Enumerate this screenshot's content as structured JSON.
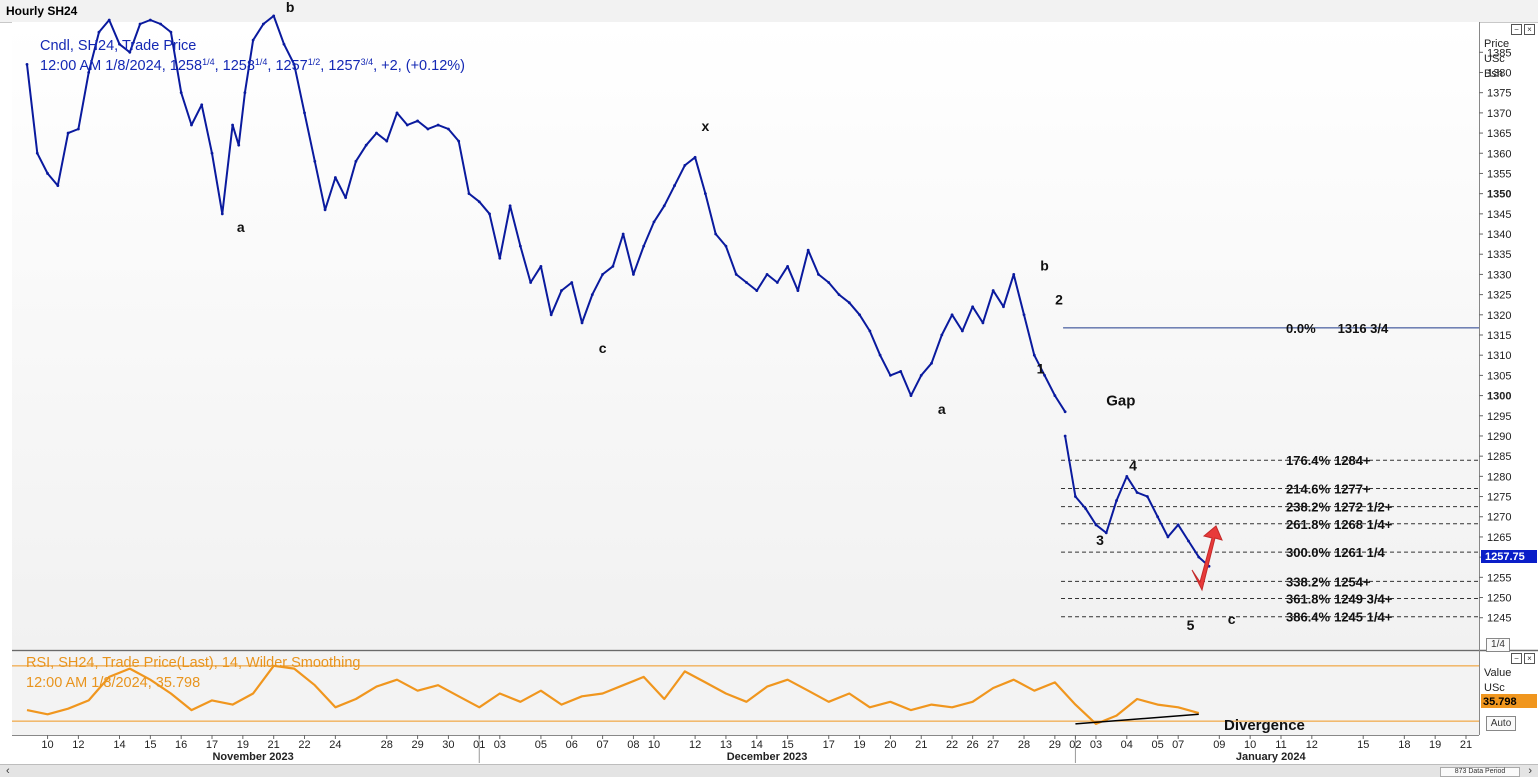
{
  "window": {
    "title": "Hourly SH24"
  },
  "header": {
    "line1": "Cndl, SH24, Trade Price",
    "line2_pre": "12:00 AM 1/8/2024, 1258",
    "q1": "1/4",
    "mid2": ", 1258",
    "q2": "1/4",
    "mid3": ", 1257",
    "q3": "1/2",
    "mid4": ", 1257",
    "q4": "3/4",
    "line2_post": ", +2, (+0.12%)"
  },
  "rsi_header": {
    "line1": "RSI, SH24, Trade Price(Last),  14, Wilder Smoothing",
    "line2": "12:00 AM 1/8/2024, 35.798"
  },
  "axis_units": [
    "Price",
    "USc",
    "Bsh"
  ],
  "rsi_axis_units": [
    "Value",
    "USc"
  ],
  "rsi_value_tag": "35.798",
  "price_tag": "1257.75",
  "buttons": {
    "fraction": "1/4",
    "auto": "Auto",
    "data_period": "873 Data Period"
  },
  "colors": {
    "price": "#0a1a9e",
    "rsi": "#f0961e",
    "divergence_line": "#000000",
    "price_tag_bg": "#0a1ec8",
    "rsi_tag_bg": "#f0961e",
    "arrow": "#e83a3a"
  },
  "chart_data": {
    "type": "line",
    "title": "Hourly SH24",
    "y_ticks": [
      1245,
      1250,
      1255,
      1260,
      1265,
      1270,
      1275,
      1280,
      1285,
      1290,
      1295,
      1300,
      1305,
      1310,
      1315,
      1320,
      1325,
      1330,
      1335,
      1340,
      1345,
      1350,
      1355,
      1360,
      1365,
      1370,
      1375,
      1380,
      1385
    ],
    "y_tick_labels_bold": [
      1300,
      1350
    ],
    "ylim": [
      1237.5,
      1392.5
    ],
    "xlim": [
      0,
      70
    ],
    "day_ticks": [
      {
        "x": 1,
        "label": "10"
      },
      {
        "x": 2.5,
        "label": "12"
      },
      {
        "x": 4.5,
        "label": "14"
      },
      {
        "x": 6,
        "label": "15"
      },
      {
        "x": 7.5,
        "label": "16"
      },
      {
        "x": 9,
        "label": "17"
      },
      {
        "x": 10.5,
        "label": "19"
      },
      {
        "x": 12,
        "label": "21"
      },
      {
        "x": 13.5,
        "label": "22"
      },
      {
        "x": 15,
        "label": "24"
      },
      {
        "x": 17.5,
        "label": "28"
      },
      {
        "x": 19,
        "label": "29"
      },
      {
        "x": 20.5,
        "label": "30"
      },
      {
        "x": 22,
        "label": "01"
      },
      {
        "x": 23,
        "label": "03"
      },
      {
        "x": 25,
        "label": "05"
      },
      {
        "x": 26.5,
        "label": "06"
      },
      {
        "x": 28,
        "label": "07"
      },
      {
        "x": 29.5,
        "label": "08"
      },
      {
        "x": 30.5,
        "label": "10"
      },
      {
        "x": 32.5,
        "label": "12"
      },
      {
        "x": 34,
        "label": "13"
      },
      {
        "x": 35.5,
        "label": "14"
      },
      {
        "x": 37,
        "label": "15"
      },
      {
        "x": 39,
        "label": "17"
      },
      {
        "x": 40.5,
        "label": "19"
      },
      {
        "x": 42,
        "label": "20"
      },
      {
        "x": 43.5,
        "label": "21"
      },
      {
        "x": 45,
        "label": "22"
      },
      {
        "x": 46,
        "label": "26"
      },
      {
        "x": 47,
        "label": "27"
      },
      {
        "x": 48.5,
        "label": "28"
      },
      {
        "x": 50,
        "label": "29"
      },
      {
        "x": 51,
        "label": "02"
      },
      {
        "x": 52,
        "label": "03"
      },
      {
        "x": 53.5,
        "label": "04"
      },
      {
        "x": 55,
        "label": "05"
      },
      {
        "x": 56,
        "label": "07"
      },
      {
        "x": 58,
        "label": "09"
      },
      {
        "x": 59.5,
        "label": "10"
      },
      {
        "x": 61,
        "label": "11"
      },
      {
        "x": 62.5,
        "label": "12"
      },
      {
        "x": 65,
        "label": "15"
      },
      {
        "x": 67,
        "label": "18"
      },
      {
        "x": 68.5,
        "label": "19"
      },
      {
        "x": 70,
        "label": "21"
      }
    ],
    "months": [
      {
        "x": 11,
        "label": "November 2023"
      },
      {
        "x": 36,
        "label": "December 2023"
      },
      {
        "x": 60.5,
        "label": "January 2024"
      }
    ],
    "month_separators": [
      22,
      51
    ],
    "series": [
      {
        "x": [
          0,
          0.5,
          1,
          1.5,
          2,
          2.5,
          3,
          3.5,
          4,
          4.5,
          5,
          5.5,
          6,
          6.5,
          7,
          7.5,
          8,
          8.5,
          9,
          9.5,
          10,
          10.3,
          10.6,
          11,
          11.5,
          12,
          12.5,
          13,
          13.5,
          14,
          14.5,
          15,
          15.5,
          16,
          16.5,
          17,
          17.5,
          18,
          18.5,
          19,
          19.5,
          20,
          20.5,
          21,
          21.5,
          22,
          22.5,
          23,
          23.5,
          24,
          24.5,
          25,
          25.5,
          26,
          26.5,
          27,
          27.5,
          28,
          28.5,
          29,
          29.5,
          30,
          30.5,
          31,
          31.5,
          32,
          32.5,
          33,
          33.5,
          34,
          34.5,
          35,
          35.5,
          36,
          36.5,
          37,
          37.5,
          38,
          38.5,
          39,
          39.5,
          40,
          40.5,
          41,
          41.5,
          42,
          42.5,
          43,
          43.5,
          44,
          44.5,
          45,
          45.5,
          46,
          46.5,
          47,
          47.5,
          48,
          48.5,
          49,
          49.5,
          50,
          50.5
        ],
        "values": [
          1382,
          1360,
          1355,
          1352,
          1365,
          1366,
          1380,
          1390,
          1393,
          1387,
          1385,
          1392,
          1393,
          1392,
          1390,
          1375,
          1367,
          1372,
          1360,
          1345,
          1367,
          1362,
          1375,
          1388,
          1392,
          1394,
          1387,
          1382,
          1370,
          1358,
          1346,
          1354,
          1349,
          1358,
          1362,
          1365,
          1363,
          1370,
          1367,
          1368,
          1366,
          1367,
          1366,
          1363,
          1350,
          1348,
          1345,
          1334,
          1347,
          1337,
          1328,
          1332,
          1320,
          1326,
          1328,
          1318,
          1325,
          1330,
          1332,
          1340,
          1330,
          1337,
          1343,
          1347,
          1352,
          1357,
          1359,
          1350,
          1340,
          1337,
          1330,
          1328,
          1326,
          1330,
          1328,
          1332,
          1326,
          1336,
          1330,
          1328,
          1325,
          1323,
          1320,
          1316,
          1310,
          1305,
          1306,
          1300,
          1305,
          1308,
          1315,
          1320,
          1316,
          1322,
          1318,
          1326,
          1322,
          1330,
          1320,
          1310,
          1305,
          1300,
          1296
        ]
      },
      {
        "x": [
          50.5,
          51,
          51.5,
          52,
          52.5,
          53,
          53.5,
          54,
          54.5,
          55,
          55.5,
          56,
          56.5,
          57,
          57.5
        ],
        "values": [
          1290,
          1275,
          1272,
          1268,
          1266,
          1274,
          1280,
          1276,
          1275,
          1270,
          1265,
          1268,
          1264,
          1260,
          1257.75
        ]
      }
    ],
    "fib_levels": [
      {
        "pct": "0.0%",
        "price": 1316.75,
        "label": "1316 3/4",
        "style": "solid"
      },
      {
        "pct": "176.4%",
        "price": 1284,
        "label": "1284+",
        "style": "dashed"
      },
      {
        "pct": "214.6%",
        "price": 1277,
        "label": "1277+",
        "style": "dashed"
      },
      {
        "pct": "238.2%",
        "price": 1272.5,
        "label": "1272 1/2+",
        "style": "dashed"
      },
      {
        "pct": "261.8%",
        "price": 1268.25,
        "label": "1268 1/4+",
        "style": "dashed"
      },
      {
        "pct": "300.0%",
        "price": 1261.25,
        "label": "1261 1/4",
        "style": "dashed"
      },
      {
        "pct": "338.2%",
        "price": 1254,
        "label": "1254+",
        "style": "dashed"
      },
      {
        "pct": "361.8%",
        "price": 1249.75,
        "label": "1249 3/4+",
        "style": "dashed"
      },
      {
        "pct": "386.4%",
        "price": 1245.25,
        "label": "1245 1/4+",
        "style": "dashed"
      }
    ],
    "wave_labels": [
      {
        "x": 10.4,
        "y": 1340.5,
        "label": "a"
      },
      {
        "x": 12.8,
        "y": 1395,
        "label": "b"
      },
      {
        "x": 28,
        "y": 1310.5,
        "label": "c"
      },
      {
        "x": 33,
        "y": 1365.5,
        "label": "x"
      },
      {
        "x": 44.5,
        "y": 1295.5,
        "label": "a"
      },
      {
        "x": 49.5,
        "y": 1331,
        "label": "b"
      },
      {
        "x": 50.2,
        "y": 1322.5,
        "label": "2"
      },
      {
        "x": 49.3,
        "y": 1305.5,
        "label": "1"
      },
      {
        "x": 52.2,
        "y": 1263,
        "label": "3"
      },
      {
        "x": 53.8,
        "y": 1281.5,
        "label": "4"
      },
      {
        "x": 56.6,
        "y": 1242,
        "label": "5"
      },
      {
        "x": 58.6,
        "y": 1243.5,
        "label": "c"
      }
    ],
    "annotations": [
      {
        "x": 52.5,
        "y": 1297.5,
        "label": "Gap"
      }
    ],
    "rsi": {
      "ylim": [
        20,
        80
      ],
      "upper_line": 70,
      "lower_line": 30,
      "x": [
        0,
        1,
        2,
        3,
        4,
        5,
        6,
        7,
        8,
        9,
        10,
        11,
        12,
        13,
        14,
        15,
        16,
        17,
        18,
        19,
        20,
        21,
        22,
        23,
        24,
        25,
        26,
        27,
        28,
        29,
        30,
        31,
        32,
        33,
        34,
        35,
        36,
        37,
        38,
        39,
        40,
        41,
        42,
        43,
        44,
        45,
        46,
        47,
        48,
        49,
        50,
        51,
        52,
        53,
        54,
        55,
        56,
        57
      ],
      "values": [
        38,
        35,
        39,
        45,
        62,
        68,
        60,
        50,
        38,
        45,
        42,
        50,
        70,
        68,
        56,
        40,
        46,
        55,
        60,
        52,
        56,
        48,
        40,
        50,
        44,
        52,
        42,
        48,
        50,
        56,
        62,
        46,
        66,
        58,
        50,
        44,
        55,
        60,
        52,
        44,
        50,
        40,
        44,
        38,
        42,
        40,
        44,
        54,
        60,
        52,
        58,
        42,
        28,
        34,
        46,
        42,
        40,
        35.798
      ],
      "divergence": {
        "x1": 51,
        "y1": 28,
        "x2": 57,
        "y2": 35
      },
      "annotation": "Divergence"
    }
  }
}
